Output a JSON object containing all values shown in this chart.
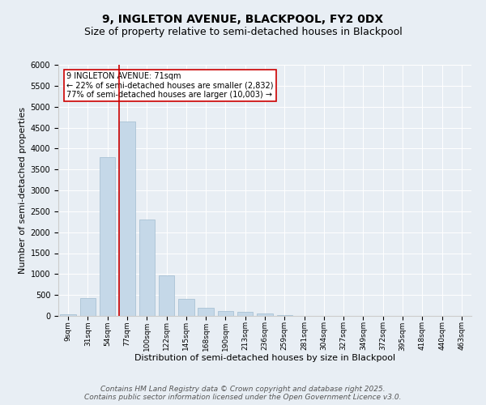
{
  "title1": "9, INGLETON AVENUE, BLACKPOOL, FY2 0DX",
  "title2": "Size of property relative to semi-detached houses in Blackpool",
  "xlabel": "Distribution of semi-detached houses by size in Blackpool",
  "ylabel": "Number of semi-detached properties",
  "categories": [
    "9sqm",
    "31sqm",
    "54sqm",
    "77sqm",
    "100sqm",
    "122sqm",
    "145sqm",
    "168sqm",
    "190sqm",
    "213sqm",
    "236sqm",
    "259sqm",
    "281sqm",
    "304sqm",
    "327sqm",
    "349sqm",
    "372sqm",
    "395sqm",
    "418sqm",
    "440sqm",
    "463sqm"
  ],
  "values": [
    30,
    430,
    3800,
    4650,
    2300,
    960,
    410,
    200,
    110,
    90,
    60,
    10,
    5,
    3,
    2,
    2,
    1,
    1,
    1,
    1,
    1
  ],
  "bar_color": "#c5d8e8",
  "bar_edgecolor": "#a0bcd0",
  "vline_color": "#cc0000",
  "annotation_text": "9 INGLETON AVENUE: 71sqm\n← 22% of semi-detached houses are smaller (2,832)\n77% of semi-detached houses are larger (10,003) →",
  "annotation_box_color": "#ffffff",
  "annotation_box_edgecolor": "#cc0000",
  "ylim": [
    0,
    6000
  ],
  "yticks": [
    0,
    500,
    1000,
    1500,
    2000,
    2500,
    3000,
    3500,
    4000,
    4500,
    5000,
    5500,
    6000
  ],
  "background_color": "#e8eef4",
  "plot_bg_color": "#e8eef4",
  "footer": "Contains HM Land Registry data © Crown copyright and database right 2025.\nContains public sector information licensed under the Open Government Licence v3.0.",
  "title_fontsize": 10,
  "subtitle_fontsize": 9,
  "axis_label_fontsize": 8,
  "tick_fontsize": 7,
  "footer_fontsize": 6.5
}
